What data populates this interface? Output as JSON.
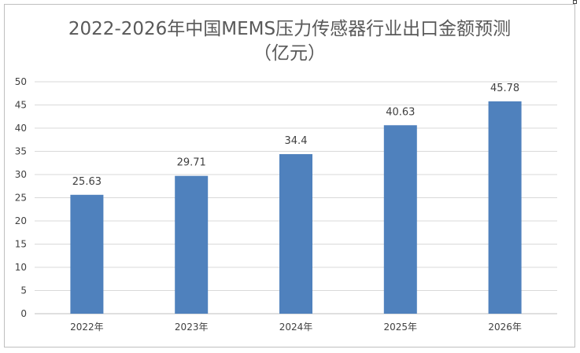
{
  "chart_data": {
    "type": "bar",
    "title_line1": "2022-2026年中国MEMS压力传感器行业出口金额预测",
    "title_line2": "（亿元）",
    "categories": [
      "2022年",
      "2023年",
      "2024年",
      "2025年",
      "2026年"
    ],
    "values": [
      25.63,
      29.71,
      34.4,
      40.63,
      45.78
    ],
    "data_labels": [
      "25.63",
      "29.71",
      "34.4",
      "40.63",
      "45.78"
    ],
    "ylim": [
      0,
      50
    ],
    "y_ticks": [
      "0",
      "5",
      "10",
      "15",
      "20",
      "25",
      "30",
      "35",
      "40",
      "45",
      "50"
    ],
    "xlabel": "",
    "ylabel": "",
    "grid": true,
    "legend": "none",
    "bar_color": "#4f81bd",
    "grid_color": "#d9d9d9"
  }
}
